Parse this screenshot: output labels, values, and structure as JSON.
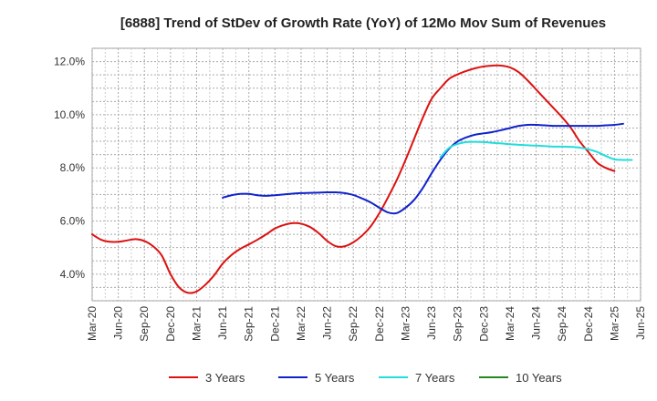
{
  "chart_data": {
    "type": "line",
    "title": "[6888]  Trend of StDev of Growth Rate (YoY) of 12Mo Mov Sum of Revenues",
    "xlabel": "",
    "ylabel": "",
    "x_ticks": [
      "Mar-20",
      "Jun-20",
      "Sep-20",
      "Dec-20",
      "Mar-21",
      "Jun-21",
      "Sep-21",
      "Dec-21",
      "Mar-22",
      "Jun-22",
      "Sep-22",
      "Dec-22",
      "Mar-23",
      "Jun-23",
      "Sep-23",
      "Dec-23",
      "Mar-24",
      "Jun-24",
      "Sep-24",
      "Dec-24",
      "Mar-25",
      "Jun-25"
    ],
    "y_ticks": [
      "4.0%",
      "6.0%",
      "8.0%",
      "10.0%",
      "12.0%"
    ],
    "y_tick_values": [
      4,
      6,
      8,
      10,
      12
    ],
    "ylim": [
      3.0,
      12.5
    ],
    "x_range_months": [
      0,
      63
    ],
    "grid": true,
    "legend_position": "bottom",
    "series": [
      {
        "name": "3 Years",
        "color": "#dd1111",
        "start_month": 0,
        "values": [
          5.5,
          5.3,
          5.22,
          5.22,
          5.27,
          5.32,
          5.25,
          5.05,
          4.7,
          4.0,
          3.5,
          3.3,
          3.35,
          3.6,
          3.95,
          4.4,
          4.72,
          4.95,
          5.12,
          5.3,
          5.5,
          5.72,
          5.85,
          5.92,
          5.9,
          5.78,
          5.55,
          5.25,
          5.05,
          5.05,
          5.2,
          5.45,
          5.8,
          6.3,
          6.9,
          7.55,
          8.3,
          9.1,
          9.9,
          10.6,
          11.0,
          11.35,
          11.52,
          11.65,
          11.75,
          11.82,
          11.85,
          11.85,
          11.78,
          11.6,
          11.3,
          10.95,
          10.6,
          10.25,
          9.9,
          9.5,
          9.0,
          8.6,
          8.2,
          8.0,
          7.88
        ]
      },
      {
        "name": "5 Years",
        "color": "#1122cc",
        "start_month": 15,
        "values": [
          6.88,
          6.97,
          7.02,
          7.02,
          6.97,
          6.95,
          6.97,
          7.0,
          7.03,
          7.05,
          7.06,
          7.07,
          7.08,
          7.08,
          7.05,
          6.98,
          6.85,
          6.7,
          6.5,
          6.32,
          6.3,
          6.5,
          6.8,
          7.25,
          7.8,
          8.3,
          8.72,
          9.0,
          9.15,
          9.25,
          9.3,
          9.35,
          9.42,
          9.5,
          9.58,
          9.62,
          9.62,
          9.6,
          9.58,
          9.58,
          9.58,
          9.58,
          9.58,
          9.58,
          9.6,
          9.62,
          9.66
        ]
      },
      {
        "name": "7 Years",
        "color": "#22dddd",
        "start_month": 40,
        "values": [
          8.4,
          8.75,
          8.9,
          8.97,
          8.98,
          8.97,
          8.94,
          8.92,
          8.89,
          8.87,
          8.85,
          8.84,
          8.82,
          8.8,
          8.8,
          8.79,
          8.76,
          8.7,
          8.6,
          8.45,
          8.32,
          8.3,
          8.3
        ]
      },
      {
        "name": "10 Years",
        "color": "#228822",
        "start_month": 0,
        "values": []
      }
    ]
  }
}
